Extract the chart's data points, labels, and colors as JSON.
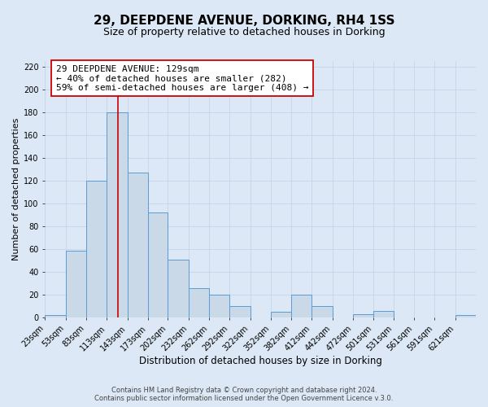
{
  "title": "29, DEEPDENE AVENUE, DORKING, RH4 1SS",
  "subtitle": "Size of property relative to detached houses in Dorking",
  "xlabel": "Distribution of detached houses by size in Dorking",
  "ylabel": "Number of detached properties",
  "bin_edges": [
    23,
    53,
    83,
    113,
    143,
    173,
    202,
    232,
    262,
    292,
    322,
    352,
    382,
    412,
    442,
    472,
    501,
    531,
    561,
    591,
    621
  ],
  "bin_labels": [
    "23sqm",
    "53sqm",
    "83sqm",
    "113sqm",
    "143sqm",
    "173sqm",
    "202sqm",
    "232sqm",
    "262sqm",
    "292sqm",
    "322sqm",
    "352sqm",
    "382sqm",
    "412sqm",
    "442sqm",
    "472sqm",
    "501sqm",
    "531sqm",
    "561sqm",
    "591sqm",
    "621sqm"
  ],
  "bar_values": [
    2,
    59,
    120,
    180,
    127,
    92,
    51,
    26,
    20,
    10,
    0,
    5,
    20,
    10,
    0,
    3,
    6,
    0,
    0,
    0,
    2
  ],
  "bar_color": "#c9d9e8",
  "bar_edge_color": "#5b9bd5",
  "vline_x": 129,
  "vline_color": "#cc0000",
  "ylim": [
    0,
    225
  ],
  "yticks": [
    0,
    20,
    40,
    60,
    80,
    100,
    120,
    140,
    160,
    180,
    200,
    220
  ],
  "xlim_left": 23,
  "xlim_right": 651,
  "annotation_title": "29 DEEPDENE AVENUE: 129sqm",
  "annotation_line1": "← 40% of detached houses are smaller (282)",
  "annotation_line2": "59% of semi-detached houses are larger (408) →",
  "annotation_box_facecolor": "#ffffff",
  "annotation_box_edgecolor": "#cc0000",
  "background_color": "#dce8f5",
  "grid_color": "#c5d5e8",
  "title_fontsize": 11,
  "subtitle_fontsize": 9,
  "xlabel_fontsize": 8.5,
  "ylabel_fontsize": 8,
  "tick_fontsize": 7,
  "annotation_fontsize": 8,
  "footer_fontsize": 6,
  "footer1": "Contains HM Land Registry data © Crown copyright and database right 2024.",
  "footer2": "Contains public sector information licensed under the Open Government Licence v.3.0."
}
